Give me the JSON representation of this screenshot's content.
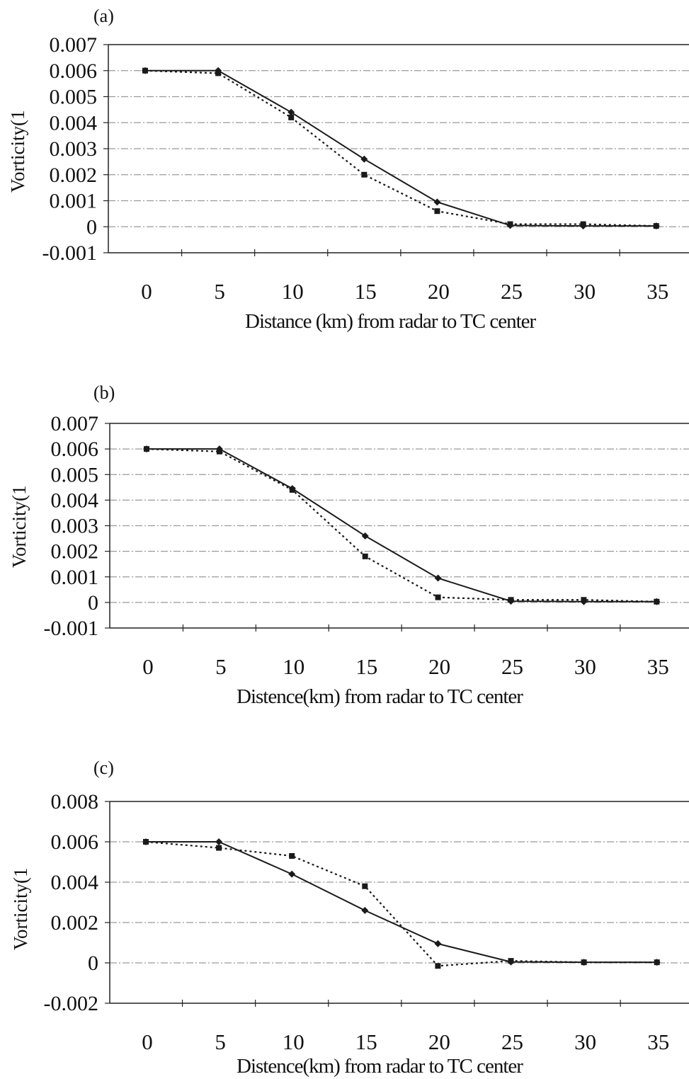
{
  "chart_data": [
    {
      "type": "line",
      "panel_label": "(a)",
      "xlabel": "Distance (km) from radar to TC center",
      "ylabel": "Vorticity(1",
      "x": [
        0,
        5,
        10,
        15,
        20,
        25,
        30,
        35
      ],
      "x_tick_labels": [
        "0",
        "5",
        "10",
        "15",
        "20",
        "25",
        "30",
        "35"
      ],
      "ylim": [
        -0.001,
        0.007
      ],
      "y_ticks": [
        -0.001,
        0,
        0.001,
        0.002,
        0.003,
        0.004,
        0.005,
        0.006,
        0.007
      ],
      "y_tick_labels": [
        "-0.001",
        "0",
        "0.001",
        "0.002",
        "0.003",
        "0.004",
        "0.005",
        "0.006",
        "0.007"
      ],
      "grid": true,
      "series": [
        {
          "style": "solid",
          "marker": "diamond",
          "values": [
            0.006,
            0.006,
            0.0044,
            0.0026,
            0.00095,
            5e-05,
            3e-05,
            3e-05
          ]
        },
        {
          "style": "dotted",
          "marker": "square",
          "values": [
            0.006,
            0.0059,
            0.0042,
            0.002,
            0.0006,
            0.0001,
            0.0001,
            3e-05
          ]
        }
      ]
    },
    {
      "type": "line",
      "panel_label": "(b)",
      "xlabel": "Distence(km) from radar to TC center",
      "ylabel": "Vorticity(1",
      "x": [
        0,
        5,
        10,
        15,
        20,
        25,
        30,
        35
      ],
      "x_tick_labels": [
        "0",
        "5",
        "10",
        "15",
        "20",
        "25",
        "30",
        "35"
      ],
      "ylim": [
        -0.001,
        0.007
      ],
      "y_ticks": [
        -0.001,
        0,
        0.001,
        0.002,
        0.003,
        0.004,
        0.005,
        0.006,
        0.007
      ],
      "y_tick_labels": [
        "-0.001",
        "0",
        "0.001",
        "0.002",
        "0.003",
        "0.004",
        "0.005",
        "0.006",
        "0.007"
      ],
      "grid": true,
      "series": [
        {
          "style": "solid",
          "marker": "diamond",
          "values": [
            0.006,
            0.006,
            0.00445,
            0.0026,
            0.00095,
            5e-05,
            3e-05,
            3e-05
          ]
        },
        {
          "style": "dotted",
          "marker": "square",
          "values": [
            0.006,
            0.0059,
            0.0044,
            0.0018,
            0.0002,
            0.0001,
            0.0001,
            3e-05
          ]
        }
      ]
    },
    {
      "type": "line",
      "panel_label": "(c)",
      "xlabel": "Distence(km) from radar to TC center",
      "ylabel": "Vorticity(1",
      "x": [
        0,
        5,
        10,
        15,
        20,
        25,
        30,
        35
      ],
      "x_tick_labels": [
        "0",
        "5",
        "10",
        "15",
        "20",
        "25",
        "30",
        "35"
      ],
      "ylim": [
        -0.002,
        0.008
      ],
      "y_ticks": [
        -0.002,
        0,
        0.002,
        0.004,
        0.006,
        0.008
      ],
      "y_tick_labels": [
        "-0.002",
        "0",
        "0.002",
        "0.004",
        "0.006",
        "0.008"
      ],
      "grid": true,
      "series": [
        {
          "style": "solid",
          "marker": "diamond",
          "values": [
            0.006,
            0.006,
            0.0044,
            0.0026,
            0.00095,
            5e-05,
            3e-05,
            3e-05
          ]
        },
        {
          "style": "dotted",
          "marker": "square",
          "values": [
            0.006,
            0.0057,
            0.0053,
            0.0038,
            -0.00015,
            0.0001,
            3e-05,
            3e-05
          ]
        }
      ]
    }
  ]
}
